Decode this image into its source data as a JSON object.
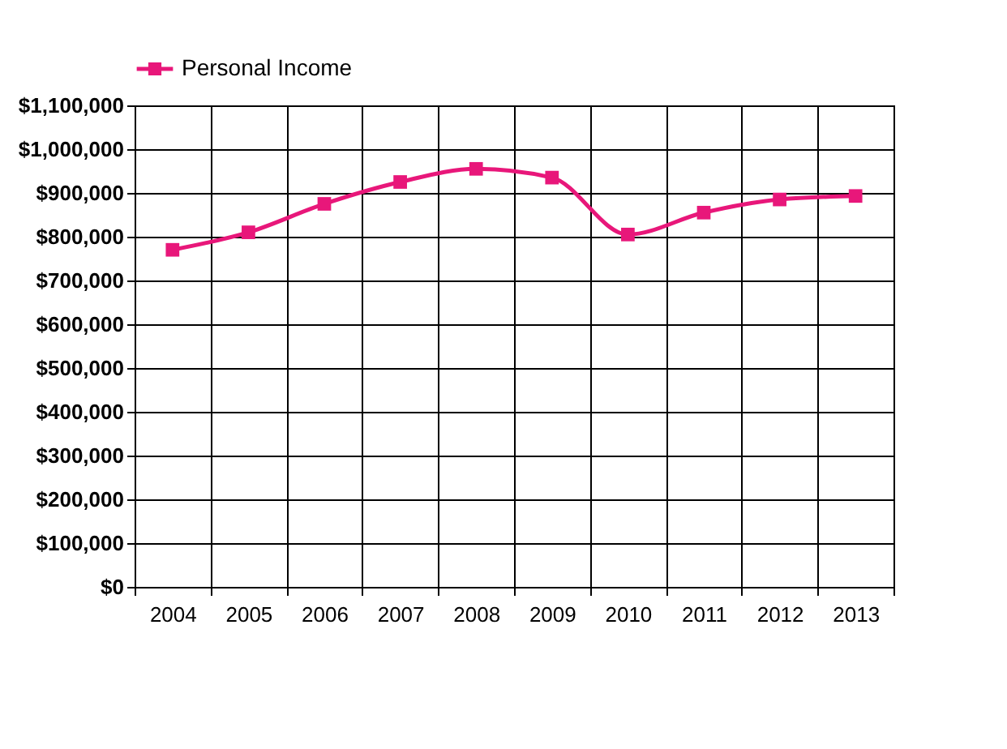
{
  "chart_data": {
    "type": "line",
    "categories": [
      "2004",
      "2005",
      "2006",
      "2007",
      "2008",
      "2009",
      "2010",
      "2011",
      "2012",
      "2013"
    ],
    "series": [
      {
        "name": "Personal Income",
        "color": "#e8177a",
        "values": [
          770000,
          810000,
          875000,
          925000,
          955000,
          935000,
          805000,
          855000,
          885000,
          893000
        ]
      }
    ],
    "ylim": [
      0,
      1100000
    ],
    "yticks": [
      {
        "value": 0,
        "label": "$0"
      },
      {
        "value": 100000,
        "label": "$100,000"
      },
      {
        "value": 200000,
        "label": "$200,000"
      },
      {
        "value": 300000,
        "label": "$300,000"
      },
      {
        "value": 400000,
        "label": "$400,000"
      },
      {
        "value": 500000,
        "label": "$500,000"
      },
      {
        "value": 600000,
        "label": "$600,000"
      },
      {
        "value": 700000,
        "label": "$700,000"
      },
      {
        "value": 800000,
        "label": "$800,000"
      },
      {
        "value": 900000,
        "label": "$900,000"
      },
      {
        "value": 1000000,
        "label": "$1,000,000"
      },
      {
        "value": 1100000,
        "label": "$1,100,000"
      }
    ],
    "grid": true,
    "legend": "top",
    "marker": "square",
    "line_style": "solid"
  }
}
